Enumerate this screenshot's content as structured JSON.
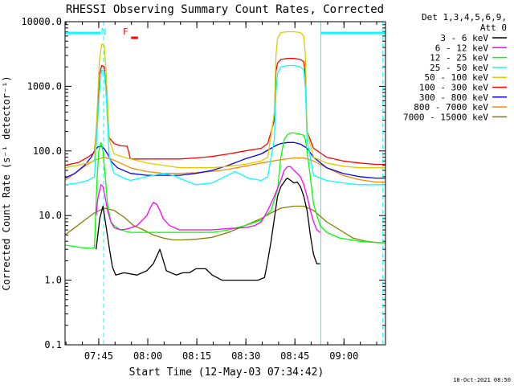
{
  "chart_data": {
    "type": "line",
    "title": "RHESSI Observing Summary Count Rates, Corrected",
    "xlabel": "Start Time (12-May-03 07:34:42)",
    "ylabel": "Corrected Count Rate (s⁻¹ detector⁻¹)",
    "yscale": "log",
    "ylim": [
      0.1,
      10000
    ],
    "y_ticks": [
      0.1,
      1,
      10,
      100,
      1000,
      10000
    ],
    "y_tick_labels": [
      "0.1",
      "1.0",
      "10.0",
      "100.0",
      "1000.0",
      "10000.0"
    ],
    "xlim_minutes_after_start": [
      0,
      98
    ],
    "x_ticks": [
      {
        "minute": 10.3,
        "label": "07:45"
      },
      {
        "minute": 25.3,
        "label": "08:00"
      },
      {
        "minute": 40.3,
        "label": "08:15"
      },
      {
        "minute": 55.3,
        "label": "08:30"
      },
      {
        "minute": 70.3,
        "label": "08:45"
      },
      {
        "minute": 85.3,
        "label": "09:00"
      }
    ],
    "legend_header": [
      "Det 1,3,4,5,6,9,",
      "Att 0"
    ],
    "legend_position": "right",
    "series": [
      {
        "name": "3 - 6 keV",
        "color": "#000000",
        "x": [
          0,
          4,
          8,
          9.5,
          10.6,
          11.6,
          12.6,
          13.5,
          14.5,
          15.5,
          18,
          22,
          25,
          27,
          29,
          31,
          34,
          36,
          38,
          40,
          43,
          45,
          48,
          50,
          53,
          55,
          57,
          59,
          61,
          62,
          63,
          64,
          65,
          66,
          67,
          67.5,
          68,
          69,
          70,
          71,
          72,
          73,
          74,
          74.5,
          75,
          76,
          77,
          78
        ],
        "y": [
          null,
          null,
          null,
          3.0,
          9.0,
          14.0,
          6.5,
          3.2,
          1.6,
          1.2,
          1.3,
          1.2,
          1.4,
          1.8,
          3.0,
          1.4,
          1.2,
          1.3,
          1.3,
          1.5,
          1.5,
          1.2,
          1.0,
          1.0,
          1.0,
          1.0,
          1.0,
          1.0,
          1.1,
          2.0,
          4.0,
          9.0,
          20,
          28,
          33,
          36,
          38,
          35,
          32,
          33,
          28,
          20,
          12,
          8,
          5,
          2.5,
          1.8,
          1.8
        ]
      },
      {
        "name": "6 - 12 keV",
        "color": "#ff00ff",
        "x": [
          9.5,
          10,
          10.5,
          11,
          11.6,
          12.2,
          13,
          14,
          15,
          17,
          19,
          22,
          25,
          26,
          27,
          28,
          29,
          30,
          32,
          35,
          40,
          45,
          50,
          55,
          58,
          60,
          62,
          64,
          66,
          67,
          68,
          69,
          70,
          71,
          72,
          73,
          74,
          75,
          76,
          77,
          78
        ],
        "y": [
          10,
          18,
          24,
          30,
          28,
          20,
          12,
          8.0,
          6.5,
          6.0,
          6.2,
          7.0,
          10,
          13,
          16,
          15,
          12,
          9.0,
          7.0,
          6.0,
          6.0,
          6.0,
          6.3,
          6.5,
          7.0,
          8.0,
          12,
          20,
          35,
          50,
          57,
          57,
          50,
          45,
          40,
          30,
          20,
          12,
          8.0,
          6.0,
          5.5
        ]
      },
      {
        "name": "12 - 25 keV",
        "color": "#00ff00",
        "x": [
          0,
          5,
          8,
          9,
          9.7,
          10.3,
          11,
          11.6,
          12.3,
          13,
          14,
          15,
          17,
          20,
          25,
          28,
          31,
          35,
          40,
          45,
          50,
          55,
          60,
          63,
          65,
          66,
          67,
          68,
          69,
          70,
          71,
          72,
          73,
          73.5,
          74,
          75,
          76,
          78,
          80,
          84,
          90,
          96,
          98
        ],
        "y": [
          3.5,
          3.2,
          3.1,
          3.2,
          30,
          100,
          135,
          100,
          40,
          15,
          8.0,
          7.0,
          6.0,
          5.5,
          5.5,
          5.5,
          5.5,
          5.5,
          5.5,
          5.5,
          6.0,
          7.0,
          8.5,
          12,
          25,
          80,
          150,
          180,
          190,
          190,
          185,
          180,
          175,
          150,
          100,
          40,
          15,
          7.0,
          5.5,
          4.5,
          4.0,
          3.8,
          3.8
        ]
      },
      {
        "name": "25 - 50 keV",
        "color": "#00ffff",
        "x": [
          0,
          4,
          7,
          9,
          9.8,
          10.5,
          11.2,
          12,
          12.6,
          13.5,
          15,
          18,
          20,
          25,
          30,
          33,
          36,
          40,
          45,
          48,
          52,
          56,
          60,
          62,
          64,
          64.5,
          65,
          66,
          68,
          70,
          72,
          73,
          73.5,
          74,
          76,
          80,
          85,
          90,
          95,
          98
        ],
        "y": [
          30,
          32,
          35,
          40,
          200,
          800,
          1800,
          1700,
          700,
          80,
          45,
          38,
          35,
          40,
          45,
          42,
          36,
          30,
          32,
          38,
          48,
          38,
          35,
          40,
          150,
          800,
          1600,
          2000,
          2100,
          2100,
          2000,
          1800,
          900,
          150,
          42,
          35,
          32,
          30,
          30,
          30
        ]
      },
      {
        "name": "50 - 100 keV",
        "color": "#ddcc00",
        "x": [
          0,
          4,
          7,
          9,
          9.8,
          10.5,
          11.2,
          12,
          12.6,
          13.5,
          15,
          18,
          20,
          25,
          30,
          35,
          40,
          45,
          50,
          55,
          60,
          62,
          64,
          64.5,
          65,
          66,
          68,
          70,
          72,
          73,
          73.5,
          74,
          76,
          80,
          85,
          90,
          95,
          98
        ],
        "y": [
          55,
          60,
          65,
          70,
          400,
          2500,
          4500,
          4200,
          1500,
          150,
          90,
          80,
          75,
          65,
          60,
          55,
          55,
          55,
          58,
          62,
          70,
          80,
          400,
          3000,
          5500,
          6800,
          7000,
          7000,
          6800,
          6000,
          3000,
          200,
          80,
          65,
          58,
          55,
          55,
          55
        ]
      },
      {
        "name": "100 - 300 keV",
        "color": "#ff0000",
        "x": [
          0,
          4,
          7,
          9,
          9.8,
          10.5,
          11.2,
          12,
          12.6,
          13.5,
          15,
          17,
          19,
          20,
          25,
          30,
          35,
          40,
          45,
          50,
          55,
          60,
          62,
          64,
          64.5,
          65,
          66,
          68,
          70,
          72,
          73,
          73.5,
          74,
          76,
          80,
          85,
          90,
          95,
          98
        ],
        "y": [
          60,
          66,
          80,
          95,
          300,
          1500,
          2100,
          2000,
          800,
          160,
          130,
          120,
          118,
          75,
          75,
          75,
          75,
          78,
          82,
          90,
          100,
          110,
          130,
          300,
          1700,
          2300,
          2600,
          2700,
          2700,
          2600,
          2400,
          1500,
          200,
          110,
          80,
          70,
          65,
          62,
          62
        ]
      },
      {
        "name": "300 - 800 keV",
        "color": "#0000ff",
        "x": [
          0,
          3,
          6,
          8,
          9,
          10,
          11,
          12,
          13,
          14,
          16,
          20,
          25,
          30,
          35,
          40,
          45,
          50,
          55,
          60,
          63,
          65,
          66,
          68,
          70,
          72,
          74,
          76,
          80,
          85,
          90,
          95,
          98
        ],
        "y": [
          38,
          45,
          60,
          80,
          100,
          115,
          118,
          108,
          90,
          70,
          55,
          45,
          42,
          42,
          42,
          45,
          50,
          60,
          75,
          90,
          110,
          125,
          130,
          135,
          135,
          128,
          110,
          80,
          55,
          45,
          40,
          38,
          38
        ]
      },
      {
        "name": "800 - 7000 keV",
        "color": "#ff8800",
        "x": [
          0,
          3,
          6,
          9,
          12,
          15,
          20,
          25,
          30,
          35,
          40,
          45,
          50,
          55,
          60,
          65,
          70,
          73,
          76,
          80,
          85,
          90,
          95,
          98
        ],
        "y": [
          35,
          45,
          58,
          72,
          80,
          72,
          55,
          48,
          45,
          45,
          46,
          48,
          52,
          58,
          65,
          72,
          78,
          78,
          70,
          55,
          42,
          36,
          33,
          33
        ]
      },
      {
        "name": "7000 - 15000 keV",
        "color": "#808000",
        "x": [
          0,
          3,
          6,
          9,
          12,
          15,
          18,
          21,
          24,
          27,
          30,
          33,
          36,
          40,
          45,
          50,
          55,
          60,
          63,
          66,
          70,
          73,
          76,
          80,
          84,
          88,
          92,
          96,
          98
        ],
        "y": [
          5.0,
          6.5,
          8.5,
          11,
          13,
          12,
          9.5,
          7.0,
          6.0,
          5.0,
          4.5,
          4.2,
          4.2,
          4.3,
          4.6,
          5.5,
          7.0,
          9.0,
          11,
          13,
          14,
          14,
          12,
          8.0,
          6.0,
          4.5,
          4.0,
          3.8,
          3.8
        ]
      }
    ],
    "annotations": [
      {
        "text": "N",
        "color": "#00ffff",
        "minute": 11.8
      },
      {
        "text": "F",
        "color": "#ff0000",
        "minute": 18.5
      },
      {
        "type": "status-bar",
        "name": "night",
        "color": "#00ffff",
        "from_minute": 0,
        "to_minute": 10.8
      },
      {
        "type": "status-bar",
        "name": "night",
        "color": "#00ffff",
        "from_minute": 78.2,
        "to_minute": 98
      },
      {
        "type": "status-bar",
        "name": "flare",
        "color": "#ff0000",
        "from_minute": 20.2,
        "to_minute": 22.3
      },
      {
        "type": "vline",
        "style": "solid",
        "color": "#00ffff",
        "minute": 0
      },
      {
        "type": "vline",
        "style": "dashed",
        "color": "#00ffff",
        "minute": 11.8
      },
      {
        "type": "vline",
        "style": "solid",
        "color": "#00ffff",
        "minute": 78.2
      },
      {
        "type": "vline",
        "style": "dashed",
        "color": "#00ffff",
        "minute": 97.2
      }
    ],
    "footer_date": "18-Oct-2021 08:50"
  }
}
